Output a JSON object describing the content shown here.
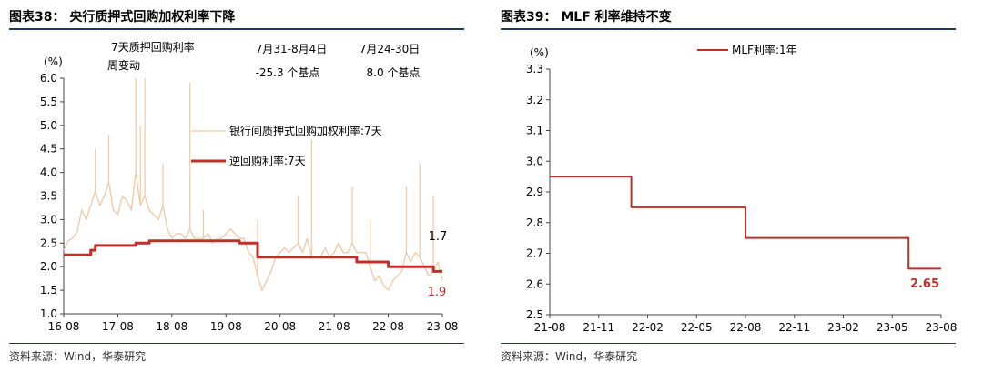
{
  "colors": {
    "accent": "#c0302b",
    "light_series": "#f3c7a2",
    "rule": "#1f3864",
    "axis": "#444444"
  },
  "left": {
    "title": "图表38：  央行质押式回购加权利率下降",
    "source": "资料来源：Wind，华泰研究",
    "notes": {
      "col1_line1": "7天质押回购利率",
      "col1_line2": "周变动",
      "col2_head": "7月31-8月4日",
      "col2_val": "-25.3 个基点",
      "col3_head": "7月24-30日",
      "col3_val": "8.0  个基点"
    }
  },
  "right": {
    "title": "图表39：  MLF 利率维持不变",
    "source": "资料来源：Wind，华泰研究"
  },
  "chart_data": [
    {
      "type": "line",
      "title": "央行质押式回购加权利率下降",
      "ylabel": "(%)",
      "ylim": [
        1.0,
        6.0
      ],
      "yticks": [
        "1.0",
        "1.5",
        "2.0",
        "2.5",
        "3.0",
        "3.5",
        "4.0",
        "4.5",
        "5.0",
        "5.5",
        "6.0"
      ],
      "x_tick_labels": [
        "16-08",
        "17-08",
        "18-08",
        "19-08",
        "20-08",
        "21-08",
        "22-08",
        "23-08"
      ],
      "xlim": [
        "2016-08",
        "2023-08"
      ],
      "legend_position": "center-left",
      "series": [
        {
          "name": "银行间质押式回购加权利率:7天",
          "color": "#f3c7a2",
          "points": [
            [
              "2016-08",
              2.35
            ],
            [
              "2016-09",
              2.55
            ],
            [
              "2016-10",
              2.6
            ],
            [
              "2016-11",
              2.75
            ],
            [
              "2016-12",
              3.2
            ],
            [
              "2017-01",
              3.0
            ],
            [
              "2017-02",
              3.3
            ],
            [
              "2017-03",
              3.6
            ],
            [
              "2017-04",
              3.3
            ],
            [
              "2017-05",
              3.5
            ],
            [
              "2017-06",
              3.8
            ],
            [
              "2017-07",
              3.2
            ],
            [
              "2017-08",
              3.1
            ],
            [
              "2017-09",
              3.5
            ],
            [
              "2017-10",
              3.4
            ],
            [
              "2017-11",
              3.2
            ],
            [
              "2017-12",
              4.0
            ],
            [
              "2018-01",
              3.3
            ],
            [
              "2018-02",
              3.5
            ],
            [
              "2018-03",
              3.2
            ],
            [
              "2018-04",
              3.1
            ],
            [
              "2018-05",
              3.0
            ],
            [
              "2018-06",
              3.3
            ],
            [
              "2018-07",
              2.8
            ],
            [
              "2018-08",
              2.6
            ],
            [
              "2018-09",
              2.7
            ],
            [
              "2018-10",
              2.7
            ],
            [
              "2018-11",
              2.6
            ],
            [
              "2018-12",
              2.8
            ],
            [
              "2019-01",
              2.6
            ],
            [
              "2019-02",
              2.6
            ],
            [
              "2019-03",
              2.6
            ],
            [
              "2019-04",
              2.7
            ],
            [
              "2019-05",
              2.5
            ],
            [
              "2019-06",
              2.6
            ],
            [
              "2019-07",
              2.6
            ],
            [
              "2019-08",
              2.7
            ],
            [
              "2019-09",
              2.8
            ],
            [
              "2019-10",
              2.7
            ],
            [
              "2019-11",
              2.6
            ],
            [
              "2019-12",
              2.6
            ],
            [
              "2020-01",
              2.3
            ],
            [
              "2020-02",
              2.2
            ],
            [
              "2020-03",
              1.8
            ],
            [
              "2020-04",
              1.5
            ],
            [
              "2020-05",
              1.7
            ],
            [
              "2020-06",
              1.9
            ],
            [
              "2020-07",
              2.2
            ],
            [
              "2020-08",
              2.3
            ],
            [
              "2020-09",
              2.4
            ],
            [
              "2020-10",
              2.3
            ],
            [
              "2020-11",
              2.4
            ],
            [
              "2020-12",
              2.5
            ],
            [
              "2021-01",
              2.3
            ],
            [
              "2021-02",
              2.6
            ],
            [
              "2021-03",
              2.2
            ],
            [
              "2021-04",
              2.2
            ],
            [
              "2021-05",
              2.2
            ],
            [
              "2021-06",
              2.4
            ],
            [
              "2021-07",
              2.2
            ],
            [
              "2021-08",
              2.3
            ],
            [
              "2021-09",
              2.5
            ],
            [
              "2021-10",
              2.3
            ],
            [
              "2021-11",
              2.3
            ],
            [
              "2021-12",
              2.5
            ],
            [
              "2022-01",
              2.3
            ],
            [
              "2022-02",
              2.3
            ],
            [
              "2022-03",
              2.3
            ],
            [
              "2022-04",
              2.0
            ],
            [
              "2022-05",
              1.7
            ],
            [
              "2022-06",
              1.8
            ],
            [
              "2022-07",
              1.6
            ],
            [
              "2022-08",
              1.5
            ],
            [
              "2022-09",
              1.7
            ],
            [
              "2022-10",
              1.8
            ],
            [
              "2022-11",
              1.9
            ],
            [
              "2022-12",
              2.3
            ],
            [
              "2023-01",
              2.1
            ],
            [
              "2023-02",
              2.3
            ],
            [
              "2023-03",
              2.2
            ],
            [
              "2023-04",
              2.0
            ],
            [
              "2023-05",
              1.8
            ],
            [
              "2023-06",
              1.9
            ],
            [
              "2023-07",
              2.1
            ],
            [
              "2023-08",
              1.7
            ]
          ],
          "spikes": [
            [
              "2017-03",
              4.5
            ],
            [
              "2017-06",
              4.8
            ],
            [
              "2017-12",
              6.0
            ],
            [
              "2018-01",
              5.0
            ],
            [
              "2018-02",
              6.0
            ],
            [
              "2018-06",
              4.2
            ],
            [
              "2018-12",
              5.9
            ],
            [
              "2019-03",
              3.2
            ],
            [
              "2020-03",
              3.0
            ],
            [
              "2020-12",
              3.5
            ],
            [
              "2021-03",
              4.7
            ],
            [
              "2021-12",
              3.7
            ],
            [
              "2022-04",
              3.0
            ],
            [
              "2022-12",
              3.7
            ],
            [
              "2023-03",
              4.2
            ],
            [
              "2023-06",
              3.5
            ]
          ],
          "end_label": "1.7"
        },
        {
          "name": "逆回购利率:7天",
          "color": "#c0302b",
          "points": [
            [
              "2016-08",
              2.25
            ],
            [
              "2017-02",
              2.25
            ],
            [
              "2017-02",
              2.35
            ],
            [
              "2017-03",
              2.35
            ],
            [
              "2017-03",
              2.45
            ],
            [
              "2017-12",
              2.45
            ],
            [
              "2017-12",
              2.5
            ],
            [
              "2018-03",
              2.5
            ],
            [
              "2018-03",
              2.55
            ],
            [
              "2019-11",
              2.55
            ],
            [
              "2019-11",
              2.5
            ],
            [
              "2020-03",
              2.5
            ],
            [
              "2020-03",
              2.2
            ],
            [
              "2022-01",
              2.2
            ],
            [
              "2022-01",
              2.1
            ],
            [
              "2022-08",
              2.1
            ],
            [
              "2022-08",
              2.0
            ],
            [
              "2023-06",
              2.0
            ],
            [
              "2023-06",
              1.9
            ],
            [
              "2023-08",
              1.9
            ]
          ],
          "end_label": "1.9"
        }
      ]
    },
    {
      "type": "line",
      "title": "MLF 利率维持不变",
      "ylabel": "(%)",
      "ylim": [
        2.5,
        3.3
      ],
      "yticks": [
        "2.5",
        "2.6",
        "2.7",
        "2.8",
        "2.9",
        "3.0",
        "3.1",
        "3.2",
        "3.3"
      ],
      "x_tick_labels": [
        "21-08",
        "21-11",
        "22-02",
        "22-05",
        "22-08",
        "22-11",
        "23-02",
        "23-05",
        "23-08"
      ],
      "xlim": [
        "2021-08",
        "2023-08"
      ],
      "legend_position": "top-center",
      "series": [
        {
          "name": "MLF利率:1年",
          "color": "#c0302b",
          "points": [
            [
              "2021-08",
              2.95
            ],
            [
              "2022-01",
              2.95
            ],
            [
              "2022-01",
              2.85
            ],
            [
              "2022-08",
              2.85
            ],
            [
              "2022-08",
              2.75
            ],
            [
              "2023-06",
              2.75
            ],
            [
              "2023-06",
              2.65
            ],
            [
              "2023-08",
              2.65
            ]
          ],
          "end_label": "2.65"
        }
      ]
    }
  ]
}
